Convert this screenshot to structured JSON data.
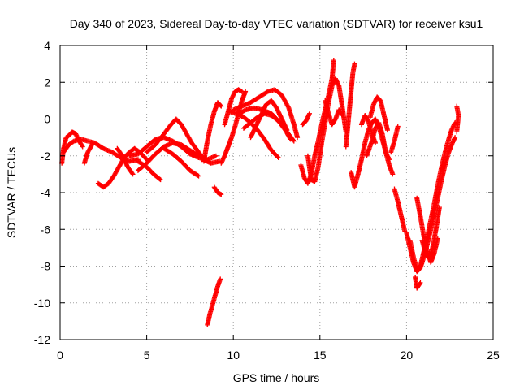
{
  "chart_data": {
    "type": "scatter",
    "title": "Day 340 of 2023, Sidereal Day-to-day VTEC variation (SDTVAR) for receiver ksu1",
    "xlabel": "GPS time / hours",
    "ylabel": "SDTVAR / TECUs",
    "xlim": [
      0,
      25
    ],
    "ylim": [
      -12,
      4
    ],
    "xticks": [
      0,
      5,
      10,
      15,
      20,
      25
    ],
    "yticks": [
      4,
      2,
      0,
      -2,
      -4,
      -6,
      -8,
      -10,
      -12
    ],
    "grid": true,
    "marker": "+",
    "series": [
      {
        "name": "SDTVAR",
        "color": "#ff0000",
        "segments": [
          [
            [
              0.1,
              -2.4
            ],
            [
              0.2,
              -1.6
            ],
            [
              0.35,
              -1.0
            ],
            [
              0.5,
              -0.9
            ],
            [
              0.7,
              -0.7
            ],
            [
              0.9,
              -0.8
            ],
            [
              1.1,
              -1.2
            ],
            [
              1.3,
              -1.5
            ]
          ],
          [
            [
              0.2,
              -1.8
            ],
            [
              0.5,
              -1.4
            ],
            [
              0.8,
              -1.2
            ],
            [
              1.2,
              -1.1
            ],
            [
              1.6,
              -1.2
            ],
            [
              2.0,
              -1.3
            ],
            [
              2.5,
              -1.6
            ],
            [
              3.0,
              -1.8
            ],
            [
              3.5,
              -2.1
            ],
            [
              4.0,
              -2.3
            ],
            [
              4.5,
              -2.2
            ]
          ],
          [
            [
              1.4,
              -2.4
            ],
            [
              1.6,
              -1.8
            ],
            [
              1.9,
              -1.3
            ]
          ],
          [
            [
              2.2,
              -3.5
            ],
            [
              2.5,
              -3.7
            ],
            [
              2.8,
              -3.5
            ],
            [
              3.1,
              -3.1
            ],
            [
              3.4,
              -2.6
            ],
            [
              3.7,
              -2.1
            ],
            [
              4.0,
              -1.8
            ],
            [
              4.3,
              -1.6
            ],
            [
              4.6,
              -1.8
            ],
            [
              5.0,
              -2.2
            ]
          ],
          [
            [
              3.3,
              -1.6
            ],
            [
              3.6,
              -2.0
            ],
            [
              3.9,
              -2.6
            ],
            [
              4.2,
              -3.0
            ]
          ],
          [
            [
              4.0,
              -2.0
            ],
            [
              4.5,
              -1.9
            ],
            [
              5.0,
              -1.5
            ],
            [
              5.5,
              -1.1
            ],
            [
              6.0,
              -1.0
            ],
            [
              6.5,
              -1.2
            ],
            [
              7.0,
              -1.5
            ],
            [
              7.5,
              -1.9
            ],
            [
              8.0,
              -2.1
            ],
            [
              8.5,
              -2.2
            ],
            [
              9.0,
              -2.0
            ]
          ],
          [
            [
              4.5,
              -2.8
            ],
            [
              5.0,
              -2.4
            ],
            [
              5.5,
              -1.9
            ],
            [
              6.0,
              -1.5
            ],
            [
              6.5,
              -1.3
            ],
            [
              7.0,
              -1.4
            ],
            [
              7.5,
              -1.7
            ],
            [
              8.0,
              -2.0
            ],
            [
              8.5,
              -2.3
            ]
          ],
          [
            [
              4.5,
              -2.3
            ],
            [
              5.0,
              -2.6
            ],
            [
              5.4,
              -3.0
            ],
            [
              5.8,
              -3.3
            ]
          ],
          [
            [
              5.0,
              -1.8
            ],
            [
              5.5,
              -1.4
            ],
            [
              6.0,
              -0.8
            ],
            [
              6.4,
              -0.3
            ],
            [
              6.7,
              0.0
            ],
            [
              7.0,
              -0.3
            ],
            [
              7.3,
              -0.8
            ],
            [
              7.6,
              -1.3
            ],
            [
              8.0,
              -1.8
            ],
            [
              8.3,
              -2.2
            ],
            [
              8.7,
              -2.4
            ],
            [
              9.2,
              -2.3
            ]
          ],
          [
            [
              6.0,
              -1.6
            ],
            [
              6.5,
              -1.9
            ],
            [
              7.0,
              -2.3
            ],
            [
              7.5,
              -2.8
            ],
            [
              8.0,
              -3.1
            ]
          ],
          [
            [
              8.3,
              -2.3
            ],
            [
              8.5,
              -1.2
            ],
            [
              8.7,
              -0.3
            ],
            [
              8.9,
              0.4
            ],
            [
              9.1,
              0.9
            ],
            [
              9.3,
              0.7
            ]
          ],
          [
            [
              8.9,
              -3.7
            ],
            [
              9.1,
              -4.0
            ],
            [
              9.3,
              -4.1
            ]
          ],
          [
            [
              8.5,
              -11.2
            ],
            [
              8.65,
              -10.6
            ],
            [
              8.8,
              -10.1
            ],
            [
              8.95,
              -9.6
            ],
            [
              9.1,
              -9.1
            ],
            [
              9.25,
              -8.7
            ]
          ],
          [
            [
              9.3,
              -2.4
            ],
            [
              9.5,
              -2.0
            ],
            [
              9.7,
              -1.5
            ],
            [
              9.9,
              -1.0
            ],
            [
              10.1,
              -0.4
            ],
            [
              10.3,
              0.3
            ],
            [
              10.5,
              1.0
            ],
            [
              10.7,
              1.5
            ]
          ],
          [
            [
              9.5,
              -0.3
            ],
            [
              9.7,
              0.4
            ],
            [
              9.9,
              1.1
            ],
            [
              10.1,
              1.5
            ],
            [
              10.3,
              1.6
            ],
            [
              10.5,
              1.5
            ]
          ],
          [
            [
              9.8,
              0.4
            ],
            [
              10.2,
              0.3
            ],
            [
              10.6,
              0.1
            ],
            [
              11.0,
              -0.2
            ],
            [
              11.4,
              -0.6
            ],
            [
              11.8,
              -1.1
            ],
            [
              12.2,
              -1.7
            ],
            [
              12.6,
              -2.1
            ]
          ],
          [
            [
              10.0,
              0.5
            ],
            [
              10.5,
              0.7
            ],
            [
              11.0,
              0.9
            ],
            [
              11.5,
              1.2
            ],
            [
              12.0,
              1.5
            ],
            [
              12.4,
              1.6
            ],
            [
              12.8,
              1.3
            ],
            [
              13.2,
              0.6
            ],
            [
              13.5,
              -0.3
            ],
            [
              13.7,
              -1.0
            ]
          ],
          [
            [
              10.2,
              0.2
            ],
            [
              10.7,
              0.5
            ],
            [
              11.2,
              0.6
            ],
            [
              11.7,
              0.5
            ],
            [
              12.2,
              0.3
            ],
            [
              12.7,
              -0.2
            ],
            [
              13.1,
              -0.7
            ],
            [
              13.5,
              -1.2
            ]
          ],
          [
            [
              10.6,
              -0.5
            ],
            [
              11.0,
              -0.2
            ],
            [
              11.4,
              0.1
            ],
            [
              11.8,
              0.3
            ],
            [
              12.2,
              0.2
            ],
            [
              12.6,
              -0.1
            ],
            [
              13.0,
              -0.6
            ],
            [
              13.3,
              -1.1
            ]
          ],
          [
            [
              11.0,
              -1.0
            ],
            [
              11.3,
              -0.4
            ],
            [
              11.6,
              0.2
            ],
            [
              11.9,
              0.8
            ],
            [
              12.2,
              1.0
            ],
            [
              12.5,
              0.6
            ],
            [
              12.8,
              0.0
            ],
            [
              13.1,
              -0.6
            ]
          ],
          [
            [
              14.0,
              -0.3
            ],
            [
              14.2,
              -0.1
            ],
            [
              14.4,
              0.3
            ]
          ],
          [
            [
              13.9,
              -2.5
            ],
            [
              14.1,
              -3.2
            ],
            [
              14.3,
              -3.5
            ],
            [
              14.5,
              -3.0
            ],
            [
              14.7,
              -2.0
            ],
            [
              14.9,
              -1.2
            ],
            [
              15.1,
              -0.3
            ],
            [
              15.3,
              0.5
            ],
            [
              15.5,
              1.3
            ],
            [
              15.7,
              2.2
            ],
            [
              15.8,
              3.2
            ]
          ],
          [
            [
              14.3,
              -2.0
            ],
            [
              14.5,
              -3.3
            ],
            [
              14.7,
              -3.4
            ],
            [
              14.9,
              -2.6
            ],
            [
              15.1,
              -1.3
            ],
            [
              15.3,
              -0.2
            ],
            [
              15.5,
              0.9
            ],
            [
              15.7,
              1.8
            ],
            [
              15.9,
              2.2
            ],
            [
              16.1,
              1.8
            ],
            [
              16.3,
              0.6
            ],
            [
              16.5,
              -0.7
            ]
          ],
          [
            [
              15.3,
              1.0
            ],
            [
              15.5,
              0.3
            ],
            [
              15.7,
              -0.3
            ],
            [
              15.9,
              0.0
            ],
            [
              16.1,
              0.5
            ],
            [
              16.3,
              0.2
            ]
          ],
          [
            [
              16.5,
              -1.5
            ],
            [
              16.6,
              -0.5
            ],
            [
              16.7,
              0.5
            ],
            [
              16.8,
              1.5
            ],
            [
              16.9,
              2.5
            ],
            [
              17.0,
              3.0
            ]
          ],
          [
            [
              16.8,
              -2.9
            ],
            [
              17.0,
              -3.7
            ],
            [
              17.2,
              -3.0
            ],
            [
              17.4,
              -2.2
            ],
            [
              17.6,
              -1.3
            ],
            [
              17.8,
              -0.6
            ],
            [
              18.0,
              -0.2
            ],
            [
              18.2,
              0.0
            ],
            [
              18.4,
              -0.4
            ],
            [
              18.6,
              -1.1
            ],
            [
              18.8,
              -1.8
            ],
            [
              19.0,
              -2.2
            ]
          ],
          [
            [
              17.4,
              -0.3
            ],
            [
              17.6,
              0.2
            ],
            [
              17.8,
              -0.1
            ],
            [
              18.0,
              -0.8
            ],
            [
              18.2,
              -1.3
            ]
          ],
          [
            [
              17.9,
              0.1
            ],
            [
              18.1,
              0.8
            ],
            [
              18.3,
              1.2
            ],
            [
              18.5,
              1.0
            ],
            [
              18.7,
              0.2
            ],
            [
              18.9,
              -0.6
            ]
          ],
          [
            [
              17.7,
              -2.0
            ],
            [
              18.0,
              -1.2
            ],
            [
              18.2,
              -0.5
            ],
            [
              18.4,
              -0.2
            ],
            [
              18.6,
              -0.8
            ],
            [
              18.8,
              -1.8
            ],
            [
              19.0,
              -2.5
            ],
            [
              19.2,
              -3.0
            ]
          ],
          [
            [
              19.3,
              -3.8
            ],
            [
              19.5,
              -4.5
            ],
            [
              19.7,
              -5.3
            ],
            [
              19.9,
              -6.1
            ]
          ],
          [
            [
              19.1,
              -1.8
            ],
            [
              19.3,
              -1.2
            ],
            [
              19.5,
              -0.4
            ]
          ],
          [
            [
              20.0,
              -6.2
            ],
            [
              20.2,
              -7.0
            ],
            [
              20.4,
              -7.8
            ],
            [
              20.6,
              -8.3
            ],
            [
              20.8,
              -8.1
            ],
            [
              21.0,
              -7.5
            ],
            [
              21.2,
              -6.8
            ],
            [
              21.4,
              -6.0
            ],
            [
              21.6,
              -5.2
            ],
            [
              21.8,
              -4.3
            ],
            [
              22.0,
              -3.4
            ],
            [
              22.2,
              -2.6
            ],
            [
              22.4,
              -1.9
            ],
            [
              22.6,
              -1.4
            ],
            [
              22.8,
              -1.0
            ]
          ],
          [
            [
              20.2,
              -6.6
            ],
            [
              20.4,
              -7.5
            ],
            [
              20.6,
              -8.2
            ],
            [
              20.8,
              -8.0
            ],
            [
              21.0,
              -7.2
            ],
            [
              21.2,
              -6.4
            ],
            [
              21.4,
              -5.5
            ],
            [
              21.6,
              -4.6
            ],
            [
              21.8,
              -3.6
            ],
            [
              22.0,
              -2.7
            ],
            [
              22.2,
              -1.9
            ],
            [
              22.4,
              -1.2
            ],
            [
              22.6,
              -0.6
            ],
            [
              22.8,
              -0.2
            ]
          ],
          [
            [
              20.5,
              -8.6
            ],
            [
              20.6,
              -9.2
            ],
            [
              20.8,
              -8.9
            ]
          ],
          [
            [
              20.6,
              -4.3
            ],
            [
              20.8,
              -5.3
            ],
            [
              21.0,
              -6.4
            ],
            [
              21.2,
              -7.2
            ],
            [
              21.4,
              -7.8
            ],
            [
              21.6,
              -7.3
            ],
            [
              21.8,
              -6.5
            ]
          ],
          [
            [
              20.9,
              -6.6
            ],
            [
              21.1,
              -7.3
            ],
            [
              21.3,
              -7.6
            ],
            [
              21.5,
              -7.0
            ],
            [
              21.7,
              -6.0
            ],
            [
              21.9,
              -4.8
            ]
          ],
          [
            [
              22.9,
              0.7
            ],
            [
              23.0,
              0.2
            ],
            [
              22.9,
              -0.7
            ]
          ]
        ]
      }
    ]
  }
}
